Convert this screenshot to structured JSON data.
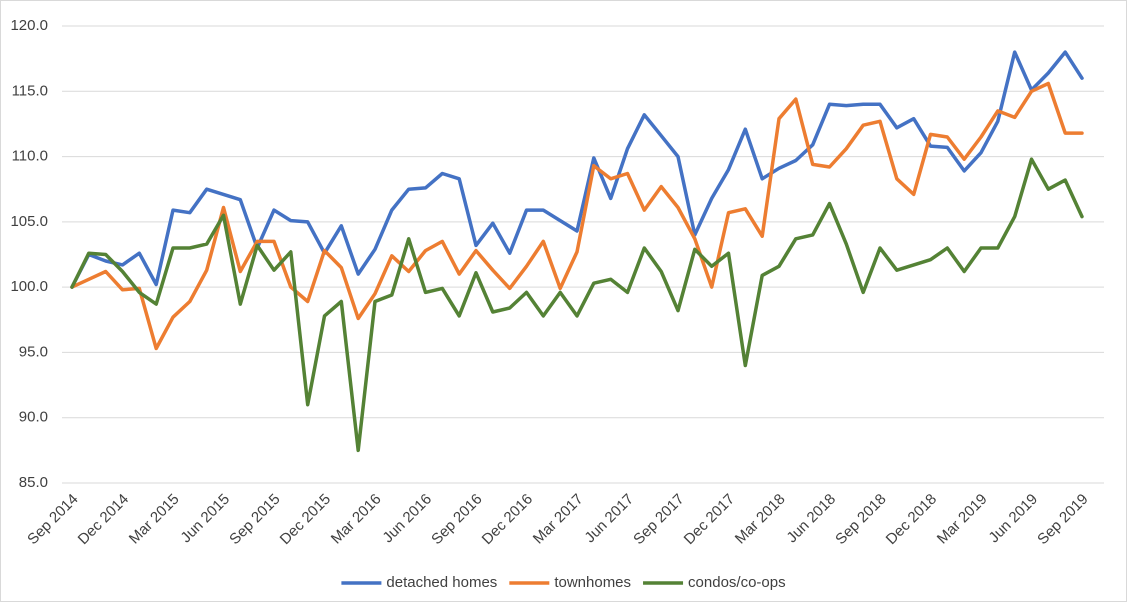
{
  "chart_data": {
    "type": "line",
    "categories": [
      "Sep 2014",
      null,
      null,
      "Dec 2014",
      null,
      null,
      "Mar 2015",
      null,
      null,
      "Jun 2015",
      null,
      null,
      "Sep 2015",
      null,
      null,
      "Dec 2015",
      null,
      null,
      "Mar 2016",
      null,
      null,
      "Jun 2016",
      null,
      null,
      "Sep 2016",
      null,
      null,
      "Dec 2016",
      null,
      null,
      "Mar 2017",
      null,
      null,
      "Jun 2017",
      null,
      null,
      "Sep 2017",
      null,
      null,
      "Dec 2017",
      null,
      null,
      "Mar 2018",
      null,
      null,
      "Jun 2018",
      null,
      null,
      "Sep 2018",
      null,
      null,
      "Dec 2018",
      null,
      null,
      "Mar 2019",
      null,
      null,
      "Jun 2019",
      null,
      null,
      "Sep 2019"
    ],
    "series": [
      {
        "name": "detached homes",
        "color": "#4472c4",
        "values": [
          100.0,
          102.5,
          102.0,
          101.7,
          102.6,
          100.2,
          105.9,
          105.7,
          107.5,
          107.1,
          106.7,
          103.0,
          105.9,
          105.1,
          105.0,
          102.6,
          104.7,
          101.0,
          102.9,
          105.9,
          107.5,
          107.6,
          108.7,
          108.3,
          103.2,
          104.9,
          102.6,
          105.9,
          105.9,
          105.1,
          104.3,
          109.9,
          106.8,
          110.6,
          113.2,
          111.6,
          110.0,
          104.0,
          106.8,
          109.0,
          112.1,
          108.3,
          109.1,
          109.7,
          110.9,
          114.0,
          113.9,
          114.0,
          114.0,
          112.2,
          112.9,
          110.8,
          110.7,
          108.9,
          110.3,
          112.7,
          118.0,
          115.1,
          116.4,
          118.0,
          116.0
        ]
      },
      {
        "name": "townhomes",
        "color": "#ed7d31",
        "values": [
          100.0,
          100.6,
          101.2,
          99.8,
          99.9,
          95.3,
          97.7,
          98.9,
          101.3,
          106.1,
          101.2,
          103.5,
          103.5,
          100.0,
          98.9,
          102.8,
          101.5,
          97.6,
          99.5,
          102.4,
          101.2,
          102.8,
          103.5,
          101.0,
          102.8,
          101.3,
          99.9,
          101.6,
          103.5,
          99.9,
          102.7,
          109.3,
          108.3,
          108.7,
          105.9,
          107.7,
          106.1,
          103.7,
          100.0,
          105.7,
          106.0,
          103.9,
          112.9,
          114.4,
          109.4,
          109.2,
          110.6,
          112.4,
          112.7,
          108.3,
          107.1,
          111.7,
          111.5,
          109.8,
          111.5,
          113.5,
          113.0,
          115.0,
          115.6,
          111.8,
          111.8
        ]
      },
      {
        "name": "condos/co-ops",
        "color": "#548235",
        "values": [
          100.0,
          102.6,
          102.5,
          101.2,
          99.6,
          98.7,
          103.0,
          103.0,
          103.3,
          105.5,
          98.7,
          103.2,
          101.3,
          102.7,
          91.0,
          97.8,
          98.9,
          87.5,
          98.9,
          99.4,
          103.7,
          99.6,
          99.9,
          97.8,
          101.1,
          98.1,
          98.4,
          99.6,
          97.8,
          99.6,
          97.8,
          100.3,
          100.6,
          99.6,
          103.0,
          101.2,
          98.2,
          102.9,
          101.6,
          102.6,
          94.0,
          100.9,
          101.6,
          103.7,
          104.0,
          106.4,
          103.3,
          99.6,
          103.0,
          101.3,
          101.7,
          102.1,
          103.0,
          101.2,
          103.0,
          103.0,
          105.4,
          109.8,
          107.5,
          108.2,
          105.4
        ]
      }
    ],
    "ylim": [
      85,
      120
    ],
    "yticks": [
      {
        "value": 85,
        "label": "85.0"
      },
      {
        "value": 90,
        "label": "90.0"
      },
      {
        "value": 95,
        "label": "95.0"
      },
      {
        "value": 100,
        "label": "100.0"
      },
      {
        "value": 105,
        "label": "105.0"
      },
      {
        "value": 110,
        "label": "110.0"
      },
      {
        "value": 115,
        "label": "115.0"
      },
      {
        "value": 120,
        "label": "120.0"
      }
    ],
    "grid": true,
    "legend": "bottom"
  }
}
